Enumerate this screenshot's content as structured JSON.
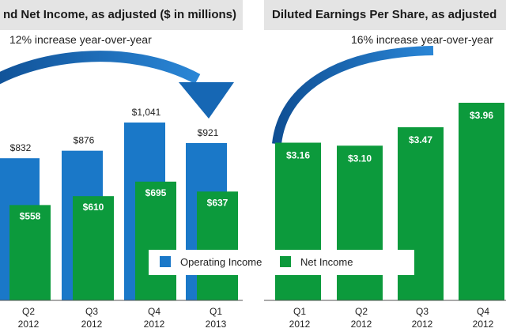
{
  "left_panel": {
    "title": "nd Net Income, as adjusted ($ in millions)",
    "subtitle": "12% increase year-over-year"
  },
  "right_panel": {
    "title": "Diluted Earnings Per Share, as adjusted",
    "subtitle": "16% increase year-over-year"
  },
  "legend": {
    "operating": "Operating Income",
    "net": "Net Income"
  },
  "colors": {
    "operating": "#1a78c8",
    "net": "#0c9a3c",
    "arrow": "#1667b4"
  },
  "chart_data": [
    {
      "type": "bar",
      "title": "",
      "categories": [
        "Q2 2012",
        "Q3 2012",
        "Q4 2012",
        "Q1 2013"
      ],
      "category_lines": [
        [
          "Q2",
          "2012"
        ],
        [
          "Q3",
          "2012"
        ],
        [
          "Q4",
          "2012"
        ],
        [
          "Q1",
          "2013"
        ]
      ],
      "series": [
        {
          "name": "Operating Income",
          "values": [
            832,
            876,
            1041,
            921
          ],
          "labels": [
            "$832",
            "$876",
            "$1,041",
            "$921"
          ]
        },
        {
          "name": "Net Income",
          "values": [
            558,
            610,
            695,
            637
          ],
          "labels": [
            "$558",
            "$610",
            "$695",
            "$637"
          ]
        }
      ],
      "ylim": [
        0,
        1200
      ],
      "grid": false,
      "legend_position": "bottom-right"
    },
    {
      "type": "bar",
      "title": "",
      "categories": [
        "Q1 2012",
        "Q2 2012",
        "Q3 2012",
        "Q4 2012"
      ],
      "category_lines": [
        [
          "Q1",
          "2012"
        ],
        [
          "Q2",
          "2012"
        ],
        [
          "Q3",
          "2012"
        ],
        [
          "Q4",
          "2012"
        ]
      ],
      "series": [
        {
          "values": [
            3.16,
            3.1,
            3.47,
            3.96
          ],
          "labels": [
            "$3.16",
            "$3.10",
            "$3.47",
            "$3.96"
          ]
        }
      ],
      "ylim": [
        0,
        4.6
      ],
      "grid": false
    }
  ]
}
